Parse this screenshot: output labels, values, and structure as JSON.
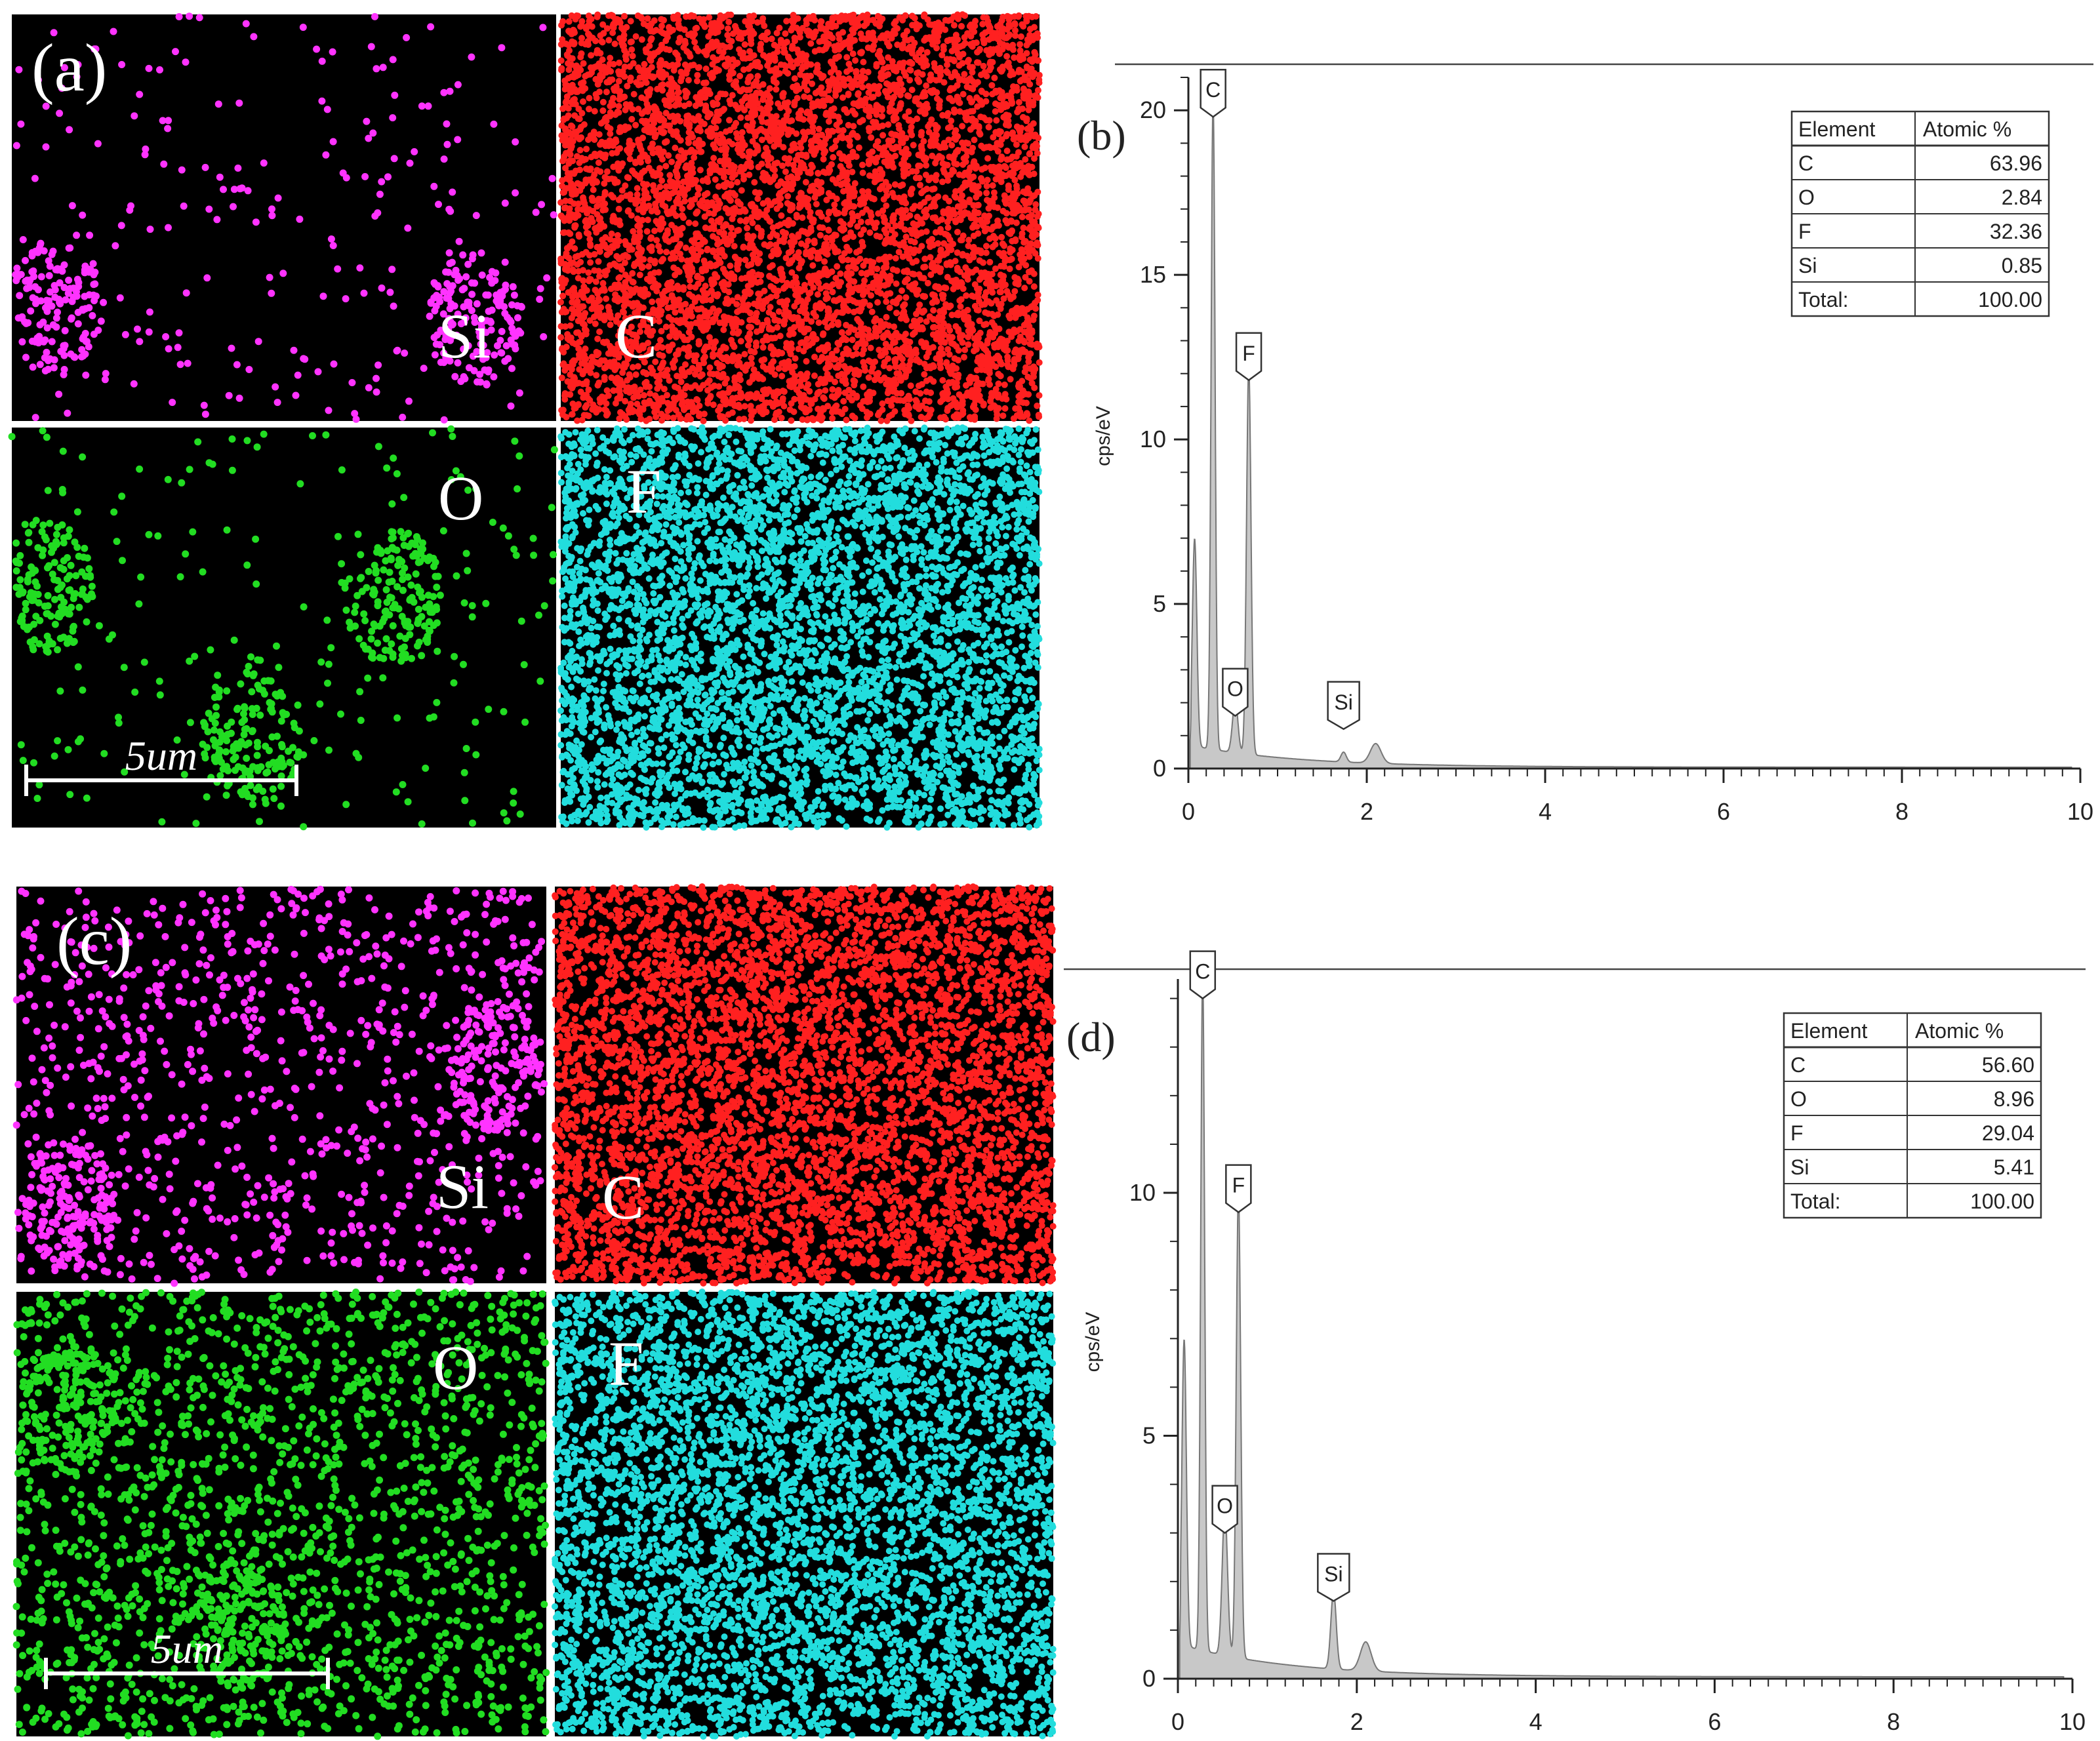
{
  "panels": {
    "a": {
      "label": "(a)",
      "maps": [
        {
          "element": "Si",
          "color": "#ff33ff",
          "density": "sparse",
          "clusters": [
            [
              0.08,
              0.72
            ],
            [
              0.85,
              0.75
            ]
          ]
        },
        {
          "element": "C",
          "color": "#ff2020",
          "density": "dense",
          "clusters": []
        },
        {
          "element": "O",
          "color": "#22dd22",
          "density": "sparse",
          "clusters": [
            [
              0.06,
              0.4
            ],
            [
              0.7,
              0.42
            ],
            [
              0.44,
              0.78
            ]
          ]
        },
        {
          "element": "F",
          "color": "#22dddd",
          "density": "dense",
          "clusters": []
        }
      ],
      "scale_bar": "5um"
    },
    "c": {
      "label": "(c)",
      "maps": [
        {
          "element": "Si",
          "color": "#ff33ff",
          "density": "medium",
          "clusters": [
            [
              0.9,
              0.45
            ],
            [
              0.1,
              0.8
            ]
          ]
        },
        {
          "element": "C",
          "color": "#ff2020",
          "density": "dense",
          "clusters": []
        },
        {
          "element": "O",
          "color": "#22dd22",
          "density": "medium-dense",
          "clusters": [
            [
              0.1,
              0.25
            ],
            [
              0.42,
              0.75
            ]
          ]
        },
        {
          "element": "F",
          "color": "#22dddd",
          "density": "dense",
          "clusters": []
        }
      ],
      "scale_bar": "5um"
    }
  },
  "chart_data": [
    {
      "type": "line",
      "panel_label": "(b)",
      "ylabel": "cps/eV",
      "xlim": [
        0,
        10
      ],
      "ylim": [
        0,
        21
      ],
      "x_ticks": [
        "0",
        "2",
        "4",
        "6",
        "8",
        "10"
      ],
      "y_ticks": [
        "0",
        "5",
        "10",
        "15",
        "20"
      ],
      "fill_color": "#c8c8c8",
      "peaks": [
        {
          "x": 0.07,
          "y": 6.3,
          "width": 0.025
        },
        {
          "x": 0.277,
          "y": 19.8,
          "width": 0.022
        },
        {
          "x": 0.525,
          "y": 1.6,
          "width": 0.03
        },
        {
          "x": 0.677,
          "y": 11.8,
          "width": 0.025
        },
        {
          "x": 1.74,
          "y": 0.3,
          "width": 0.03
        },
        {
          "x": 2.1,
          "y": 0.6,
          "width": 0.06
        }
      ],
      "peak_labels": [
        {
          "text": "C",
          "x": 0.277,
          "y": 19.8
        },
        {
          "text": "F",
          "x": 0.677,
          "y": 11.8
        },
        {
          "text": "O",
          "x": 0.525,
          "y": 1.6
        },
        {
          "text": "Si",
          "x": 1.74,
          "y": 1.2
        }
      ],
      "table": {
        "headers": [
          "Element",
          "Atomic %"
        ],
        "rows": [
          [
            "C",
            "63.96"
          ],
          [
            "O",
            "2.84"
          ],
          [
            "F",
            "32.36"
          ],
          [
            "Si",
            "0.85"
          ],
          [
            "Total:",
            "100.00"
          ]
        ]
      }
    },
    {
      "type": "line",
      "panel_label": "(d)",
      "ylabel": "cps/eV",
      "xlim": [
        0,
        10
      ],
      "ylim": [
        0,
        14.4
      ],
      "x_ticks": [
        "0",
        "2",
        "4",
        "6",
        "8",
        "10"
      ],
      "y_ticks": [
        "0",
        "5",
        "10"
      ],
      "fill_color": "#c8c8c8",
      "peaks": [
        {
          "x": 0.07,
          "y": 6.3,
          "width": 0.025
        },
        {
          "x": 0.277,
          "y": 14.0,
          "width": 0.022
        },
        {
          "x": 0.525,
          "y": 3.0,
          "width": 0.03
        },
        {
          "x": 0.677,
          "y": 9.6,
          "width": 0.025
        },
        {
          "x": 1.74,
          "y": 1.6,
          "width": 0.03
        },
        {
          "x": 2.1,
          "y": 0.6,
          "width": 0.06
        }
      ],
      "peak_labels": [
        {
          "text": "C",
          "x": 0.277,
          "y": 14.0
        },
        {
          "text": "F",
          "x": 0.677,
          "y": 9.6
        },
        {
          "text": "O",
          "x": 0.525,
          "y": 3.0
        },
        {
          "text": "Si",
          "x": 1.74,
          "y": 1.6
        }
      ],
      "table": {
        "headers": [
          "Element",
          "Atomic %"
        ],
        "rows": [
          [
            "C",
            "56.60"
          ],
          [
            "O",
            "8.96"
          ],
          [
            "F",
            "29.04"
          ],
          [
            "Si",
            "5.41"
          ],
          [
            "Total:",
            "100.00"
          ]
        ]
      }
    }
  ]
}
